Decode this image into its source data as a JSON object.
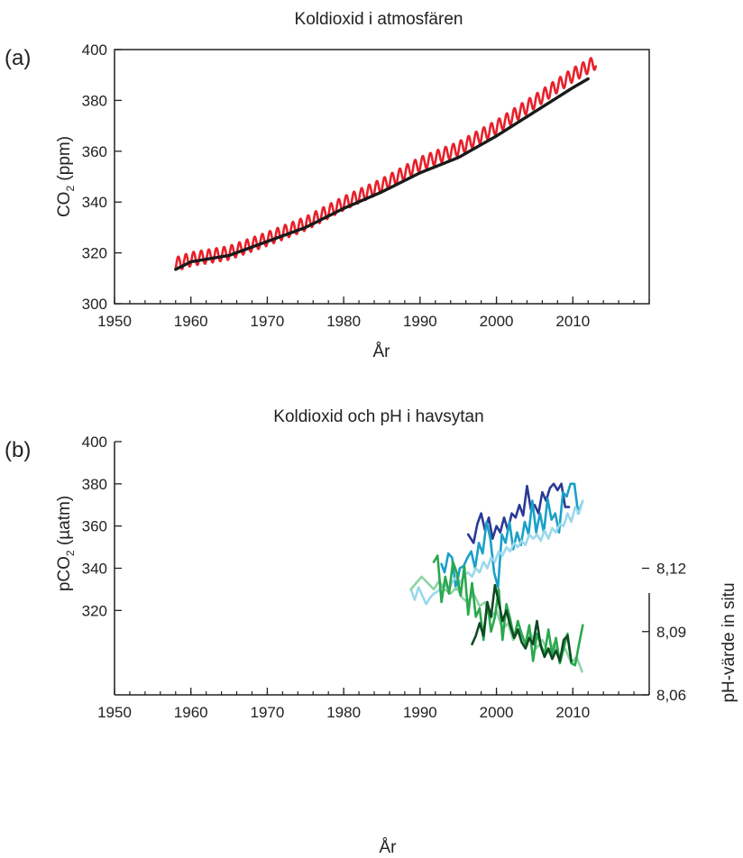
{
  "chart_data": [
    {
      "panel": "(a)",
      "type": "line",
      "title": "Koldioxid i atmosfären",
      "xlabel": "År",
      "ylabel_main": "CO",
      "ylabel_sub": "2",
      "ylabel_unit": " (ppm)",
      "xlim": [
        1950,
        2020
      ],
      "ylim": [
        300,
        400
      ],
      "xticks": [
        "1950",
        "1960",
        "1970",
        "1980",
        "1990",
        "2000",
        "2010"
      ],
      "yticks": [
        "300",
        "320",
        "340",
        "360",
        "380",
        "400"
      ],
      "grid": false,
      "colors": {
        "monthly": "#e8202a",
        "trend": "#1a1a1a"
      },
      "series": [
        {
          "key": "monthly",
          "seasonal_amplitude": 2.7,
          "x": [
            1958,
            1960,
            1965,
            1970,
            1975,
            1980,
            1985,
            1990,
            1995,
            2000,
            2005,
            2010,
            2013
          ],
          "values": [
            315.5,
            317.5,
            320.0,
            325.5,
            331.5,
            339.5,
            346.5,
            355.0,
            361.0,
            369.5,
            379.5,
            390.0,
            395.0
          ]
        },
        {
          "key": "trend",
          "x": [
            1958,
            1960,
            1965,
            1970,
            1975,
            1980,
            1985,
            1990,
            1995,
            2000,
            2005,
            2010,
            2012
          ],
          "values": [
            313.5,
            316.5,
            319.0,
            324.5,
            330.0,
            337.5,
            344.0,
            351.5,
            357.5,
            366.0,
            375.5,
            385.0,
            388.5
          ]
        }
      ]
    },
    {
      "panel": "(b)",
      "type": "line",
      "title": "Koldioxid och pH i havsytan",
      "xlabel": "År",
      "ylabel_left_main": "pCO",
      "ylabel_left_sub": "2",
      "ylabel_left_unit": " (µatm)",
      "ylabel_right": "pH-värde in situ",
      "xlim": [
        1950,
        2020
      ],
      "ylim_left": [
        280,
        400
      ],
      "ylim_right": [
        8.06,
        8.18
      ],
      "xticks": [
        "1950",
        "1960",
        "1970",
        "1980",
        "1990",
        "2000",
        "2010"
      ],
      "yticks_left": [
        "320",
        "340",
        "360",
        "380",
        "400"
      ],
      "yticks_right": [
        "8,06",
        "8,09",
        "8,12"
      ],
      "grid": false,
      "pco2_series": [
        {
          "color": "#2a3a94",
          "x": [
            1996.3,
            1997,
            1997.5,
            1998,
            1998.5,
            1999,
            1999.5,
            2000,
            2000.5,
            2001,
            2001.5,
            2002,
            2002.5,
            2003,
            2003.5,
            2004,
            2004.5,
            2005,
            2005.5,
            2006,
            2006.5,
            2007,
            2007.5,
            2008,
            2008.5,
            2009,
            2009.5
          ],
          "values": [
            356,
            352,
            361,
            366,
            358,
            364,
            354,
            360,
            357,
            364,
            358,
            366,
            364,
            370,
            365,
            379,
            368,
            370,
            366,
            376,
            372,
            378,
            380,
            377,
            380,
            369,
            369
          ]
        },
        {
          "color": "#1aa0c8",
          "x": [
            1992.8,
            1993.2,
            1993.7,
            1994.2,
            1994.7,
            1995.2,
            1995.7,
            1996.2,
            1996.7,
            1997.2,
            1997.7,
            1998.2,
            1998.7,
            1999.2,
            1999.7,
            2000.2,
            2000.7,
            2001.2,
            2001.7,
            2002.2,
            2002.7,
            2003.2,
            2003.7,
            2004.2,
            2004.7,
            2005.2,
            2005.7,
            2006.2,
            2006.7,
            2007.2,
            2007.7,
            2008.2,
            2008.7,
            2009.2,
            2009.7,
            2010.2,
            2010.7,
            2011.2
          ],
          "values": [
            342,
            338,
            347,
            345,
            330,
            340,
            341,
            345,
            348,
            340,
            352,
            347,
            362,
            354,
            338,
            331,
            356,
            352,
            362,
            349,
            357,
            351,
            362,
            356,
            372,
            357,
            366,
            357,
            373,
            363,
            366,
            357,
            376,
            374,
            380,
            380,
            366,
            371
          ]
        },
        {
          "color": "#9ad8ec",
          "x": [
            1988.8,
            1989.3,
            1989.8,
            1990.3,
            1990.8,
            1991.3,
            1991.8,
            1992.3,
            1992.8,
            1993.3,
            1993.8,
            1994.3,
            1994.8,
            1995.3,
            1995.8,
            1996.3,
            1996.8,
            1997.3,
            1997.8,
            1998.3,
            1998.8,
            1999.3,
            1999.8,
            2000.3,
            2000.8,
            2001.3,
            2001.8,
            2002.3,
            2002.8,
            2003.3,
            2003.8,
            2004.3,
            2004.8,
            2005.3,
            2005.8,
            2006.3,
            2006.8,
            2007.3,
            2007.8,
            2008.3,
            2008.8,
            2009.3,
            2009.8,
            2010.3,
            2010.8,
            2011.3
          ],
          "values": [
            330,
            325,
            331,
            327,
            323,
            326,
            328,
            329,
            331,
            332,
            330,
            334,
            336,
            333,
            337,
            338,
            336,
            340,
            338,
            343,
            340,
            345,
            343,
            348,
            346,
            350,
            348,
            352,
            350,
            353,
            351,
            356,
            354,
            356,
            353,
            358,
            354,
            359,
            357,
            361,
            360,
            366,
            362,
            369,
            366,
            372
          ]
        }
      ],
      "ph_series": [
        {
          "color": "#8fd3a4",
          "x": [
            1988.8,
            1989.5,
            1990.2,
            1991,
            1991.8,
            1992.5,
            1993.2,
            1994,
            1994.8,
            1995.5,
            1996.2,
            1997,
            1997.8,
            1998.5,
            1999.2,
            2000,
            2000.8,
            2001.5,
            2002.2,
            2003,
            2003.8,
            2004.5,
            2005.2,
            2006,
            2006.8,
            2007.5,
            2008.2,
            2009,
            2009.8,
            2010.5,
            2011.2
          ],
          "values": [
            8.11,
            8.113,
            8.116,
            8.113,
            8.11,
            8.114,
            8.11,
            8.108,
            8.111,
            8.106,
            8.104,
            8.108,
            8.102,
            8.104,
            8.096,
            8.1,
            8.091,
            8.094,
            8.086,
            8.091,
            8.084,
            8.089,
            8.082,
            8.086,
            8.08,
            8.084,
            8.078,
            8.082,
            8.075,
            8.078,
            8.071
          ]
        },
        {
          "color": "#2aa84e",
          "x": [
            1991.8,
            1992.3,
            1992.8,
            1993.3,
            1993.8,
            1994.3,
            1994.8,
            1995.3,
            1995.8,
            1996.3,
            1996.8,
            1997.3,
            1997.8,
            1998.3,
            1998.8,
            1999.3,
            1999.8,
            2000.3,
            2000.8,
            2001.3,
            2001.8,
            2002.3,
            2002.8,
            2003.3,
            2003.8,
            2004.3,
            2004.8,
            2005.3,
            2005.8,
            2006.3,
            2006.8,
            2007.3,
            2007.8,
            2008.3,
            2008.8,
            2009.3,
            2009.8,
            2010.3,
            2010.8,
            2011.3
          ],
          "values": [
            8.123,
            8.126,
            8.104,
            8.116,
            8.108,
            8.123,
            8.118,
            8.107,
            8.121,
            8.098,
            8.113,
            8.097,
            8.101,
            8.086,
            8.104,
            8.09,
            8.097,
            8.11,
            8.086,
            8.103,
            8.096,
            8.087,
            8.095,
            8.089,
            8.084,
            8.093,
            8.076,
            8.089,
            8.084,
            8.079,
            8.091,
            8.079,
            8.087,
            8.075,
            8.082,
            8.089,
            8.075,
            8.074,
            8.084,
            8.093
          ]
        },
        {
          "color": "#0e4a22",
          "x": [
            1996.8,
            1997.3,
            1997.8,
            1998.3,
            1998.8,
            1999.3,
            1999.8,
            2000.3,
            2000.8,
            2001.3,
            2001.8,
            2002.3,
            2002.8,
            2003.3,
            2003.8,
            2004.3,
            2004.8,
            2005.3,
            2005.8,
            2006.3,
            2006.8,
            2007.3,
            2007.8,
            2008.3,
            2008.8,
            2009.3,
            2009.8
          ],
          "values": [
            8.084,
            8.088,
            8.094,
            8.088,
            8.104,
            8.097,
            8.112,
            8.104,
            8.095,
            8.1,
            8.093,
            8.087,
            8.091,
            8.085,
            8.082,
            8.087,
            8.084,
            8.095,
            8.083,
            8.078,
            8.082,
            8.077,
            8.081,
            8.076,
            8.086,
            8.088,
            8.076
          ]
        }
      ]
    }
  ]
}
